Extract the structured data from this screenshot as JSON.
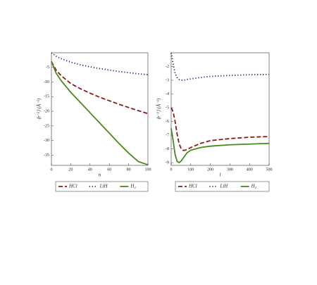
{
  "chart_data": [
    {
      "type": "line",
      "x_label": "n",
      "y_label": "⟨r⁻²⟩ (Å⁻²)",
      "x": [
        0,
        5,
        10,
        20,
        30,
        40,
        50,
        60,
        70,
        80,
        90,
        100
      ],
      "xlim": [
        0,
        100
      ],
      "xticks": [
        0,
        20,
        40,
        60,
        80,
        100
      ],
      "ylim": [
        -38.5,
        0
      ],
      "yticks": [
        -5,
        -10,
        -15,
        -20,
        -25,
        -30,
        -35
      ],
      "series": [
        {
          "name": "HCl",
          "color": "#8b1a1a",
          "style": "dashed",
          "values": [
            -3,
            -6,
            -7.8,
            -10.5,
            -12.3,
            -13.8,
            -15.2,
            -16.4,
            -17.6,
            -18.7,
            -19.8,
            -20.8
          ]
        },
        {
          "name": "LiH",
          "color": "#1a1a8b",
          "style": "dotted",
          "values": [
            0,
            -1.2,
            -2,
            -3.2,
            -4.1,
            -4.8,
            -5.4,
            -5.9,
            -6.4,
            -6.8,
            -7.2,
            -7.5
          ]
        },
        {
          "name": "H₂",
          "color": "#4a8a1a",
          "style": "solid",
          "values": [
            -3,
            -7,
            -9.5,
            -13.5,
            -17,
            -20.5,
            -24,
            -27.5,
            -31,
            -34.3,
            -37.2,
            -38.3
          ]
        }
      ]
    },
    {
      "type": "line",
      "x_label": "l",
      "y_label": "⟨r⁻²⟩ (Å⁻²)",
      "x": [
        0,
        10,
        20,
        30,
        40,
        50,
        60,
        70,
        80,
        100,
        150,
        200,
        300,
        400,
        500
      ],
      "xlim": [
        0,
        500
      ],
      "xticks": [
        0,
        100,
        200,
        300,
        400,
        500
      ],
      "ylim": [
        -9.2,
        -1
      ],
      "yticks": [
        -2,
        -3,
        -4,
        -5,
        -6,
        -7,
        -8,
        -9
      ],
      "series": [
        {
          "name": "HCl",
          "color": "#8b1a1a",
          "style": "dashed",
          "values": [
            -5,
            -5.3,
            -6,
            -6.9,
            -7.6,
            -7.95,
            -8.1,
            -8.1,
            -8.05,
            -7.9,
            -7.6,
            -7.4,
            -7.25,
            -7.15,
            -7.1
          ]
        },
        {
          "name": "LiH",
          "color": "#1a1a8b",
          "style": "dotted",
          "values": [
            -1,
            -1.8,
            -2.5,
            -2.8,
            -2.95,
            -3,
            -3,
            -2.98,
            -2.95,
            -2.9,
            -2.8,
            -2.72,
            -2.65,
            -2.6,
            -2.58
          ]
        },
        {
          "name": "H₂",
          "color": "#4a8a1a",
          "style": "solid",
          "values": [
            -6.5,
            -7.4,
            -8.4,
            -8.9,
            -9,
            -8.9,
            -8.7,
            -8.5,
            -8.3,
            -8.1,
            -7.9,
            -7.8,
            -7.7,
            -7.65,
            -7.6
          ]
        }
      ]
    }
  ]
}
